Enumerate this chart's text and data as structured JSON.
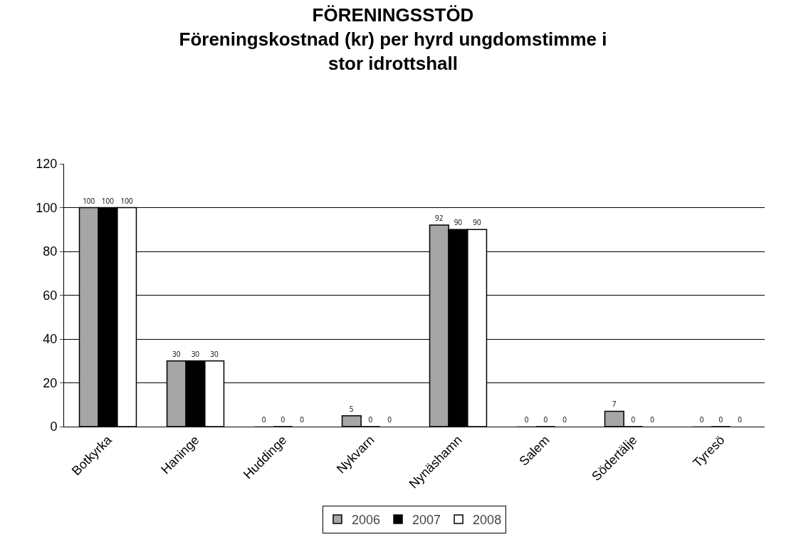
{
  "chart_data": {
    "type": "bar",
    "title": "FÖRENINGSSTÖD\nFöreningskostnad (kr) per hyrd ungdomstimme i\nstor idrottshall",
    "categories": [
      "Botkyrka",
      "Haninge",
      "Huddinge",
      "Nykvarn",
      "Nynäshamn",
      "Salem",
      "Södertälje",
      "Tyresö"
    ],
    "series": [
      {
        "name": "2006",
        "color": "#a6a6a6",
        "values": [
          100,
          30,
          0,
          5,
          92,
          0,
          7,
          0
        ]
      },
      {
        "name": "2007",
        "color": "#000000",
        "values": [
          100,
          30,
          0,
          0,
          90,
          0,
          0,
          0
        ]
      },
      {
        "name": "2008",
        "color": "#ffffff",
        "values": [
          100,
          30,
          0,
          0,
          90,
          0,
          0,
          0
        ]
      }
    ],
    "ylim": [
      0,
      120
    ],
    "yticks": [
      0,
      20,
      40,
      60,
      80,
      100,
      120
    ],
    "grid": "y",
    "legend": "bottom",
    "data_labels": true
  }
}
